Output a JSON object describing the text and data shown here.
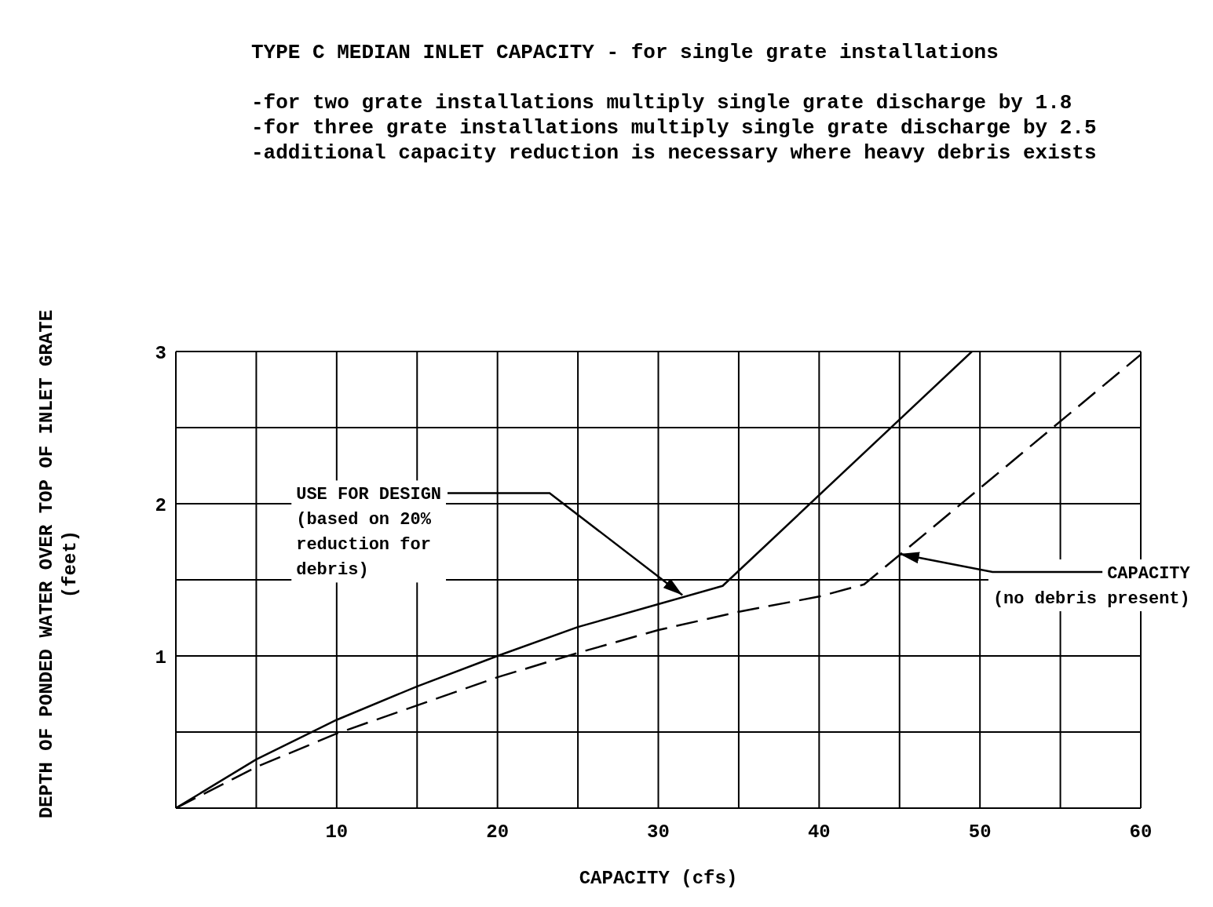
{
  "chart_data": {
    "type": "line",
    "title": "TYPE C MEDIAN INLET CAPACITY - for single grate installations",
    "subtitle": "-for two grate installations multiply single grate discharge by 1.8\n-for three grate installations multiply single grate discharge by 2.5\n-additional capacity reduction is necessary where heavy debris exists",
    "xlabel": "CAPACITY (cfs)",
    "ylabel": "DEPTH OF PONDED WATER OVER TOP OF INLET GRATE\n(feet)",
    "series": [
      {
        "color": "#000000",
        "line_style": "solid",
        "x": [
          0,
          5,
          10,
          15,
          20,
          25,
          30,
          34,
          49.5
        ],
        "values": [
          0,
          0.32,
          0.58,
          0.8,
          1.0,
          1.19,
          1.34,
          1.46,
          3.0
        ]
      },
      {
        "color": "#000000",
        "line_style": "dashed",
        "x": [
          0,
          5,
          10,
          20,
          25,
          30,
          35,
          40,
          42.8,
          60
        ],
        "values": [
          0,
          0.27,
          0.49,
          0.86,
          1.02,
          1.17,
          1.29,
          1.39,
          1.47,
          2.98
        ]
      }
    ],
    "annotations": [
      {
        "text": "USE FOR DESIGN\n(based on 20%\nreduction for\ndebris)",
        "x": 31.5,
        "y": 1.4
      },
      {
        "text": "CAPACITY\n(no debris present)",
        "x": 45,
        "y": 1.67
      }
    ],
    "xlim": [
      0,
      60
    ],
    "ylim": [
      0,
      3
    ],
    "xticks": [
      {
        "value": 0,
        "label": null
      },
      {
        "value": 5,
        "label": null
      },
      10,
      {
        "value": 15,
        "label": null
      },
      20,
      {
        "value": 25,
        "label": null
      },
      30,
      {
        "value": 35,
        "label": null
      },
      40,
      {
        "value": 45,
        "label": null
      },
      50,
      {
        "value": 55,
        "label": null
      },
      60
    ],
    "yticks": [
      {
        "value": 0,
        "label": null
      },
      {
        "value": 0.5,
        "label": null
      },
      1,
      {
        "value": 1.5,
        "label": null
      },
      2,
      {
        "value": 2.5,
        "label": null
      },
      3
    ],
    "grid": true,
    "marker": "none"
  }
}
